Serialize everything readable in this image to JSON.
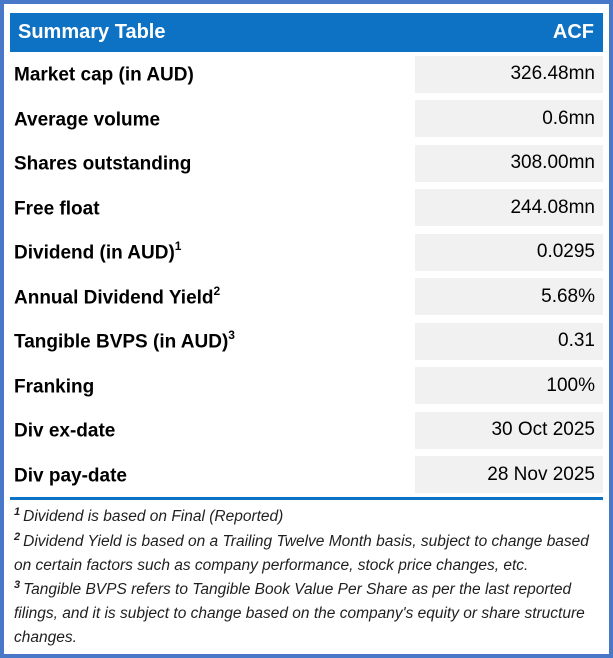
{
  "table": {
    "title": "Summary Table",
    "ticker": "ACF",
    "rows": [
      {
        "label": "Market cap (in AUD)",
        "sup": "",
        "value": "326.48mn"
      },
      {
        "label": "Average volume",
        "sup": "",
        "value": "0.6mn"
      },
      {
        "label": "Shares outstanding",
        "sup": "",
        "value": "308.00mn"
      },
      {
        "label": "Free float",
        "sup": "",
        "value": "244.08mn"
      },
      {
        "label": "Dividend (in AUD)",
        "sup": "1",
        "value": "0.0295"
      },
      {
        "label": "Annual Dividend Yield",
        "sup": "2",
        "value": "5.68%"
      },
      {
        "label": "Tangible BVPS (in AUD)",
        "sup": "3",
        "value": "0.31"
      },
      {
        "label": "Franking",
        "sup": "",
        "value": "100%"
      },
      {
        "label": "Div ex-date",
        "sup": "",
        "value": "30 Oct 2025"
      },
      {
        "label": "Div pay-date",
        "sup": "",
        "value": "28 Nov 2025"
      }
    ]
  },
  "footnotes": [
    {
      "sup": "1",
      "text": "Dividend is based on Final (Reported)"
    },
    {
      "sup": "2",
      "text": "Dividend Yield is based on a Trailing Twelve Month basis, subject to change based on certain factors such as company performance, stock price changes, etc."
    },
    {
      "sup": "3",
      "text": "Tangible BVPS refers to Tangible Book Value Per Share as per the last reported filings, and it is subject to change based on the company's equity or share structure changes."
    }
  ],
  "colors": {
    "header_bg": "#0d71c4",
    "frame_border": "#4a78c9",
    "value_cell_bg": "#f1f1f1",
    "divider": "#0d71c4"
  }
}
